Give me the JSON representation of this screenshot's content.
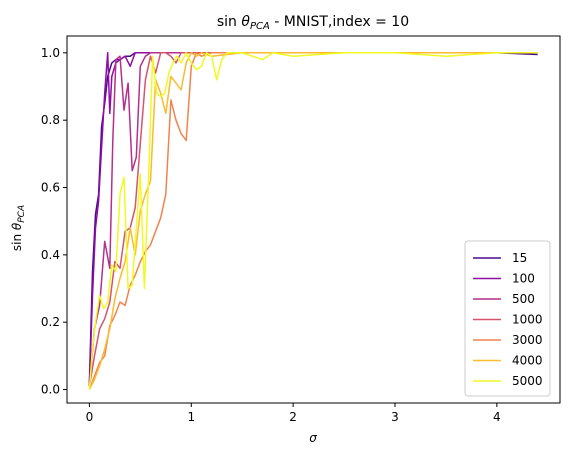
{
  "chart_data": {
    "type": "line",
    "title": "sin θ_PCA - MNIST,index = 10",
    "title_parts": {
      "prefix": "sin ",
      "theta": "θ",
      "sub": "PCA",
      "suffix": " - MNIST,index = 10"
    },
    "xlabel": "σ",
    "ylabel": "sin θ_PCA",
    "ylabel_parts": {
      "prefix": "sin ",
      "theta": "θ",
      "sub": "PCA"
    },
    "xlim": [
      -0.22,
      4.62
    ],
    "ylim": [
      -0.04,
      1.05
    ],
    "xticks": [
      0,
      1,
      2,
      3,
      4
    ],
    "xtick_labels": [
      "0",
      "1",
      "2",
      "3",
      "4"
    ],
    "yticks": [
      0.0,
      0.2,
      0.4,
      0.6,
      0.8,
      1.0
    ],
    "ytick_labels": [
      "0.0",
      "0.2",
      "0.4",
      "0.6",
      "0.8",
      "1.0"
    ],
    "grid": false,
    "legend_position": "lower-right",
    "series": [
      {
        "name": "15",
        "color": "#4b0c8f",
        "x": [
          0,
          0.03,
          0.06,
          0.09,
          0.12,
          0.15,
          0.18,
          0.22,
          0.26,
          0.3,
          0.35,
          0.4,
          0.45,
          0.5,
          0.6,
          0.8,
          1.0,
          1.5,
          2.0,
          3.0,
          4.0,
          4.4
        ],
        "y": [
          0.02,
          0.35,
          0.52,
          0.58,
          0.78,
          0.85,
          0.93,
          0.97,
          0.98,
          0.98,
          0.99,
          0.99,
          1.0,
          1.0,
          1.0,
          1.0,
          1.0,
          1.0,
          1.0,
          1.0,
          1.0,
          0.995
        ]
      },
      {
        "name": "100",
        "color": "#8f0da4",
        "x": [
          0,
          0.03,
          0.06,
          0.09,
          0.12,
          0.15,
          0.18,
          0.2,
          0.22,
          0.26,
          0.3,
          0.35,
          0.4,
          0.45,
          0.5,
          0.55,
          0.6,
          0.8,
          1.0,
          2.0,
          3.0,
          4.0,
          4.4
        ],
        "y": [
          0.01,
          0.28,
          0.48,
          0.56,
          0.72,
          0.88,
          1.0,
          0.82,
          0.93,
          0.97,
          0.98,
          0.99,
          0.96,
          1.0,
          1.0,
          1.0,
          1.0,
          1.0,
          1.0,
          1.0,
          1.0,
          1.0,
          1.0
        ]
      },
      {
        "name": "500",
        "color": "#b52f8c",
        "x": [
          0,
          0.05,
          0.1,
          0.15,
          0.2,
          0.23,
          0.26,
          0.3,
          0.34,
          0.38,
          0.42,
          0.46,
          0.5,
          0.55,
          0.6,
          0.65,
          0.7,
          0.8,
          1.0,
          1.5,
          2.0,
          3.0,
          4.0,
          4.4
        ],
        "y": [
          0.01,
          0.18,
          0.25,
          0.44,
          0.36,
          0.74,
          0.98,
          0.99,
          0.83,
          0.91,
          0.65,
          0.69,
          0.96,
          0.99,
          1.0,
          1.0,
          1.0,
          1.0,
          1.0,
          1.0,
          1.0,
          1.0,
          1.0,
          1.0
        ]
      },
      {
        "name": "1000",
        "color": "#d5546e",
        "x": [
          0,
          0.05,
          0.1,
          0.15,
          0.2,
          0.25,
          0.3,
          0.35,
          0.4,
          0.45,
          0.5,
          0.55,
          0.6,
          0.65,
          0.7,
          0.75,
          0.8,
          0.85,
          0.9,
          0.95,
          1.0,
          1.5,
          2.0,
          3.0,
          4.0,
          4.4
        ],
        "y": [
          0.01,
          0.1,
          0.18,
          0.21,
          0.26,
          0.38,
          0.36,
          0.47,
          0.48,
          0.54,
          0.73,
          0.92,
          0.99,
          0.94,
          1.0,
          1.0,
          0.99,
          0.97,
          1.0,
          1.0,
          1.0,
          1.0,
          1.0,
          1.0,
          1.0,
          1.0
        ]
      },
      {
        "name": "3000",
        "color": "#f1844b",
        "x": [
          0,
          0.05,
          0.1,
          0.15,
          0.2,
          0.25,
          0.3,
          0.35,
          0.4,
          0.45,
          0.5,
          0.55,
          0.6,
          0.65,
          0.7,
          0.75,
          0.8,
          0.85,
          0.9,
          0.95,
          1.0,
          1.05,
          1.1,
          1.2,
          1.5,
          2.0,
          3.0,
          4.0,
          4.4
        ],
        "y": [
          0.0,
          0.04,
          0.08,
          0.1,
          0.19,
          0.22,
          0.26,
          0.25,
          0.31,
          0.34,
          0.38,
          0.41,
          0.43,
          0.47,
          0.51,
          0.58,
          0.86,
          0.8,
          0.76,
          0.74,
          0.96,
          1.0,
          0.99,
          1.0,
          1.0,
          1.0,
          1.0,
          1.0,
          1.0
        ]
      },
      {
        "name": "4000",
        "color": "#fbba2f",
        "x": [
          0,
          0.05,
          0.1,
          0.15,
          0.2,
          0.25,
          0.3,
          0.35,
          0.4,
          0.45,
          0.5,
          0.55,
          0.6,
          0.65,
          0.7,
          0.75,
          0.8,
          0.85,
          0.9,
          0.95,
          1.0,
          1.05,
          1.1,
          1.2,
          1.5,
          2.0,
          3.0,
          4.0,
          4.4
        ],
        "y": [
          0.0,
          0.03,
          0.07,
          0.12,
          0.18,
          0.27,
          0.33,
          0.38,
          0.48,
          0.4,
          0.53,
          0.58,
          0.62,
          0.92,
          0.88,
          0.82,
          0.93,
          0.91,
          0.89,
          0.97,
          1.0,
          0.99,
          1.0,
          0.99,
          1.0,
          1.0,
          1.0,
          1.0,
          1.0
        ]
      },
      {
        "name": "5000",
        "color": "#f0f921",
        "x": [
          0,
          0.03,
          0.06,
          0.1,
          0.14,
          0.18,
          0.22,
          0.26,
          0.3,
          0.34,
          0.38,
          0.42,
          0.46,
          0.5,
          0.54,
          0.58,
          0.62,
          0.66,
          0.7,
          0.74,
          0.78,
          0.82,
          0.86,
          0.9,
          0.95,
          1.0,
          1.05,
          1.1,
          1.15,
          1.2,
          1.25,
          1.3,
          1.35,
          1.4,
          1.5,
          1.6,
          1.7,
          1.8,
          2.0,
          2.5,
          3.0,
          3.5,
          4.0,
          4.4
        ],
        "y": [
          0.0,
          0.12,
          0.2,
          0.28,
          0.24,
          0.26,
          0.37,
          0.35,
          0.58,
          0.63,
          0.3,
          0.31,
          0.48,
          0.64,
          0.3,
          0.62,
          0.99,
          0.88,
          0.87,
          0.88,
          0.94,
          0.97,
          0.99,
          0.97,
          1.0,
          0.97,
          0.95,
          0.96,
          1.0,
          0.99,
          0.92,
          0.98,
          1.0,
          1.0,
          1.0,
          0.99,
          0.98,
          1.0,
          0.99,
          1.0,
          1.0,
          0.99,
          1.0,
          1.0
        ]
      }
    ]
  }
}
